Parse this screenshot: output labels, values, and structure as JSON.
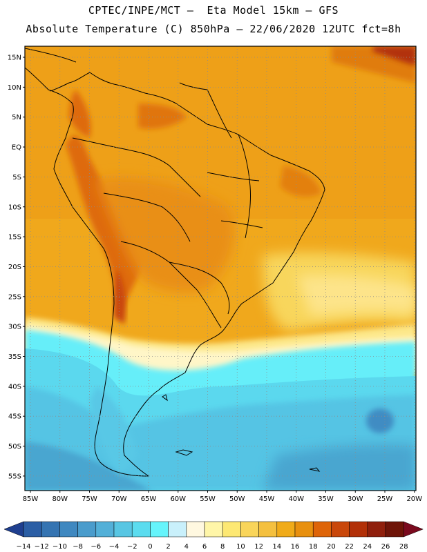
{
  "header": {
    "line1": "CPTEC/INPE/MCT –  Eta Model 15km – GFS",
    "line2": "Absolute Temperature (C) 850hPa – 22/06/2020 12UTC fct=8h"
  },
  "map": {
    "lat_labels": [
      "15N",
      "10N",
      "5N",
      "EQ",
      "5S",
      "10S",
      "15S",
      "20S",
      "25S",
      "30S",
      "35S",
      "40S",
      "45S",
      "50S",
      "55S"
    ],
    "lon_labels": [
      "85W",
      "80W",
      "75W",
      "70W",
      "65W",
      "60W",
      "55W",
      "50W",
      "45W",
      "40W",
      "35W",
      "30W",
      "25W",
      "20W"
    ]
  },
  "colorbar": {
    "labels": [
      "-14",
      "-12",
      "-10",
      "-8",
      "-6",
      "-4",
      "-2",
      "0",
      "2",
      "4",
      "6",
      "8",
      "10",
      "12",
      "14",
      "16",
      "18",
      "20",
      "22",
      "24",
      "26",
      "28"
    ],
    "colors": [
      "#1f3f8f",
      "#2b5ea5",
      "#3574b2",
      "#3f88c0",
      "#4a9ccc",
      "#53b0d8",
      "#58c6e3",
      "#5bdcef",
      "#66f4fb",
      "#c9f0fb",
      "#fff8e0",
      "#fff6a8",
      "#fde873",
      "#f9d55a",
      "#f4c03f",
      "#f0ab19",
      "#e8900f",
      "#de6408",
      "#c9470a",
      "#b23008",
      "#8f1f0c",
      "#6e1408",
      "#7a0a1e"
    ]
  }
}
